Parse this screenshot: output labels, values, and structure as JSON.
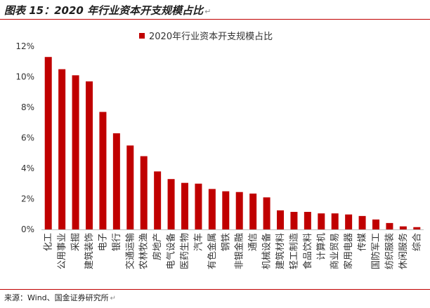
{
  "figure": {
    "title": "图表 15：2020 年行业资本开支规模占比",
    "source": "来源：Wind、国金证券研究所"
  },
  "colors": {
    "bar": "#c00000",
    "rule": "#c00000",
    "axis": "#bfbfbf"
  },
  "chart_data": {
    "type": "bar",
    "title": "",
    "xlabel": "",
    "ylabel": "",
    "legend": {
      "position": "top",
      "entries": [
        "2020年行业资本开支规模占比"
      ]
    },
    "grid": false,
    "ylim": [
      0,
      12
    ],
    "yticks": [
      "0%",
      "2%",
      "4%",
      "6%",
      "8%",
      "10%",
      "12%"
    ],
    "categories": [
      "化工",
      "公用事业",
      "采掘",
      "建筑装饰",
      "电子",
      "银行",
      "交通运输",
      "农林牧渔",
      "房地产",
      "电气设备",
      "医药生物",
      "汽车",
      "有色金属",
      "钢铁",
      "非银金融",
      "通信",
      "机械设备",
      "建筑材料",
      "轻工制造",
      "食品饮料",
      "计算机",
      "商业贸易",
      "家用电器",
      "传媒",
      "国防军工",
      "纺织服装",
      "休闲服务",
      "综合"
    ],
    "series": [
      {
        "name": "2020年行业资本开支规模占比",
        "values": [
          11.3,
          10.5,
          10.1,
          9.7,
          7.7,
          6.3,
          5.5,
          4.8,
          3.8,
          3.3,
          3.05,
          3.0,
          2.65,
          2.5,
          2.45,
          2.35,
          2.1,
          1.25,
          1.15,
          1.15,
          1.05,
          1.05,
          0.98,
          0.88,
          0.65,
          0.42,
          0.2,
          0.15
        ]
      }
    ]
  }
}
